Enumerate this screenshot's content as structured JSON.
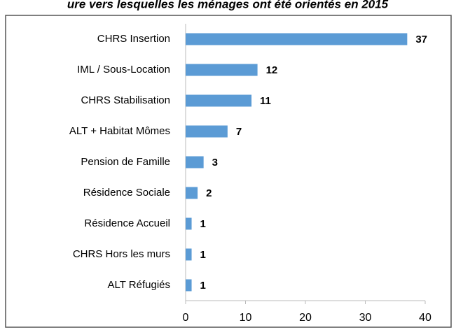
{
  "chart_data": {
    "type": "bar",
    "orientation": "horizontal",
    "title": "ure vers lesquelles les ménages ont été orientés en 2015",
    "categories": [
      "CHRS Insertion",
      "IML / Sous-Location",
      "CHRS Stabilisation",
      "ALT + Habitat Mômes",
      "Pension de Famille",
      "Résidence Sociale",
      "Résidence Accueil",
      "CHRS Hors les murs",
      "ALT Réfugiés"
    ],
    "values": [
      37,
      12,
      11,
      7,
      3,
      2,
      1,
      1,
      1
    ],
    "color": "#5b9bd5",
    "xlim": [
      0,
      40
    ],
    "xticks": [
      0,
      10,
      20,
      30,
      40
    ],
    "grid": false
  }
}
